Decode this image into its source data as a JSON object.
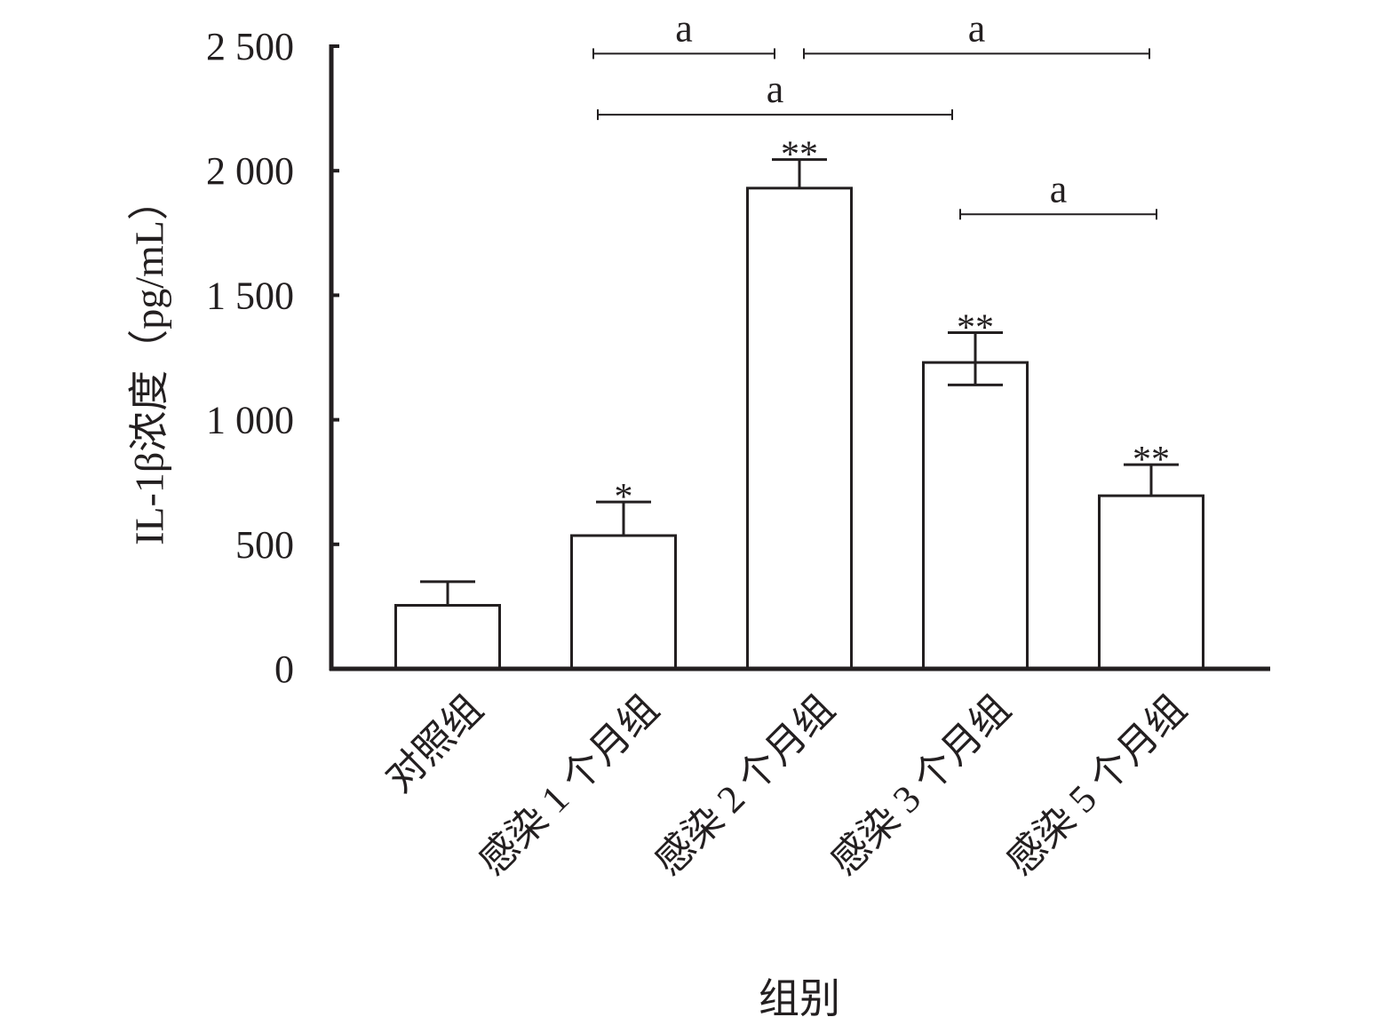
{
  "chart_data": {
    "type": "bar",
    "title": "",
    "xlabel": "组别",
    "ylabel": "IL-1β浓度（pg/mL）",
    "ylim": [
      0,
      2500
    ],
    "yticks": [
      0,
      500,
      1000,
      1500,
      2000,
      2500
    ],
    "ytick_labels": [
      "0",
      "500",
      "1 000",
      "1 500",
      "2 000",
      "2 500"
    ],
    "categories": [
      "对照组",
      "感染 1 个月组",
      "感染 2 个月组",
      "感染 3 个月组",
      "感染 5 个月组"
    ],
    "values": [
      255,
      535,
      1930,
      1230,
      695
    ],
    "errors_upper": [
      95,
      135,
      115,
      120,
      125
    ],
    "errors_lower": [
      0,
      0,
      0,
      90,
      0
    ],
    "significance": [
      "",
      "*",
      "**",
      "**",
      "**"
    ],
    "comparisons": [
      {
        "from": 1,
        "to": 2,
        "label": "a",
        "y": 2470
      },
      {
        "from": 2,
        "to": 4,
        "label": "a",
        "y": 2470
      },
      {
        "from": 1,
        "to": 3,
        "label": "a",
        "y": 2225
      },
      {
        "from": 3,
        "to": 4,
        "label": "a",
        "y": 1825
      }
    ],
    "grid": false,
    "legend": "none",
    "colors": {
      "bar_fill": "#ffffff",
      "stroke": "#231f20"
    }
  }
}
